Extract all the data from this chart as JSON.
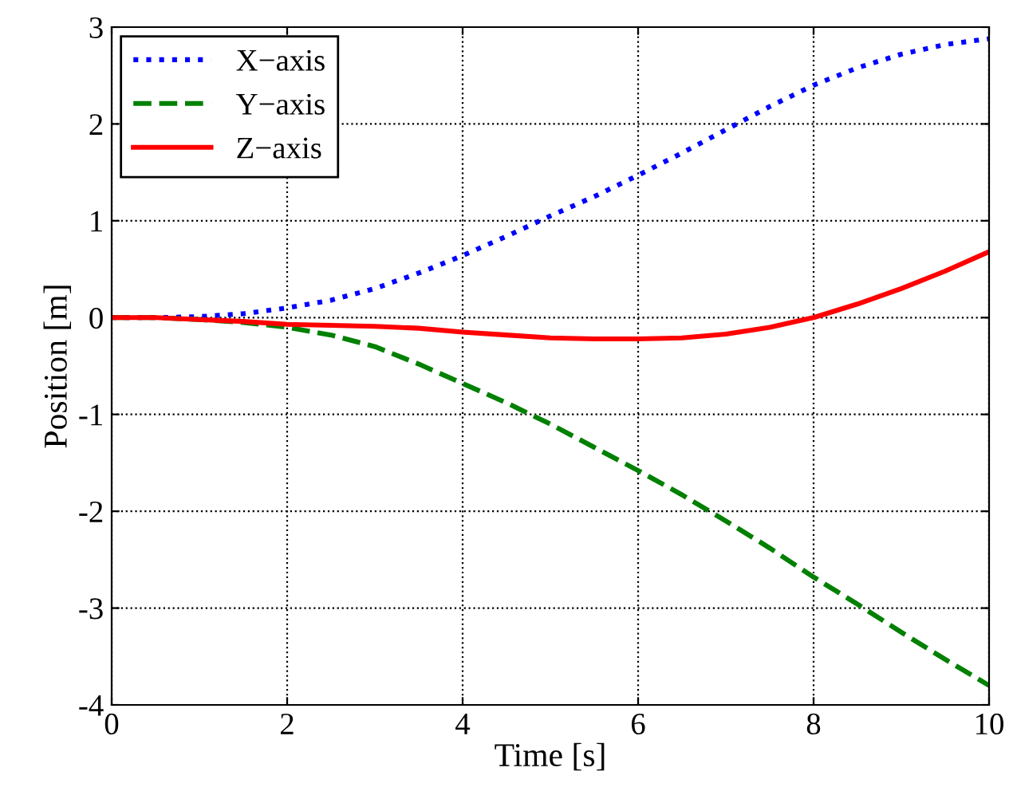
{
  "chart_data": {
    "type": "line",
    "xlabel": "Time [s]",
    "ylabel": "Position [m]",
    "x": [
      0,
      0.5,
      1,
      1.5,
      2,
      2.5,
      3,
      3.5,
      4,
      4.5,
      5,
      5.5,
      6,
      6.5,
      7,
      7.5,
      8,
      8.5,
      9,
      9.5,
      10
    ],
    "series": [
      {
        "name": "X−axis",
        "color": "#0000ff",
        "line_style": "dotted",
        "values": [
          0,
          0,
          0.01,
          0.04,
          0.1,
          0.18,
          0.3,
          0.46,
          0.64,
          0.84,
          1.05,
          1.25,
          1.47,
          1.7,
          1.94,
          2.18,
          2.4,
          2.58,
          2.72,
          2.82,
          2.88
        ]
      },
      {
        "name": "Y−axis",
        "color": "#008000",
        "line_style": "dashed",
        "values": [
          0,
          0,
          -0.02,
          -0.05,
          -0.1,
          -0.18,
          -0.3,
          -0.48,
          -0.68,
          -0.88,
          -1.1,
          -1.34,
          -1.58,
          -1.83,
          -2.1,
          -2.38,
          -2.68,
          -2.96,
          -3.25,
          -3.53,
          -3.8
        ]
      },
      {
        "name": "Z−axis",
        "color": "#ff0000",
        "line_style": "solid",
        "values": [
          0,
          0,
          -0.02,
          -0.04,
          -0.07,
          -0.08,
          -0.09,
          -0.11,
          -0.15,
          -0.18,
          -0.21,
          -0.22,
          -0.22,
          -0.21,
          -0.17,
          -0.1,
          0.0,
          0.14,
          0.3,
          0.48,
          0.68
        ]
      }
    ],
    "xlim": [
      0,
      10
    ],
    "ylim": [
      -4,
      3
    ],
    "xticks": [
      0,
      2,
      4,
      6,
      8,
      10
    ],
    "yticks": [
      -4,
      -3,
      -2,
      -1,
      0,
      1,
      2,
      3
    ],
    "grid": true,
    "legend": "top left"
  }
}
